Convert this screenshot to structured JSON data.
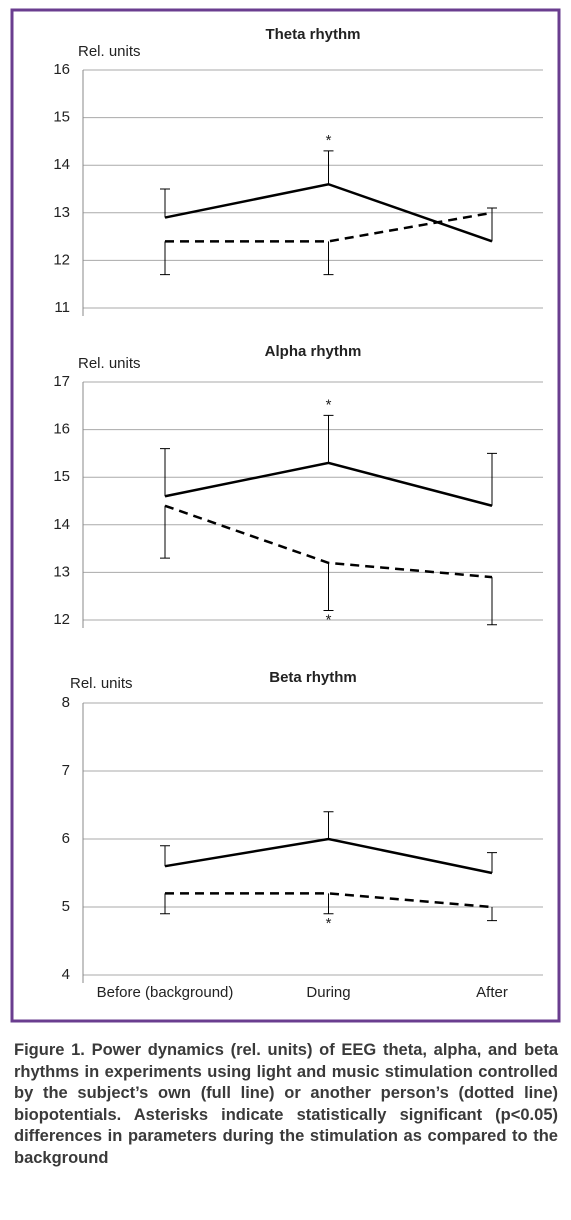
{
  "chart_data": [
    {
      "type": "line",
      "title": "Theta rhythm",
      "ylabel": "Rel. units",
      "categories": [
        null,
        null,
        null
      ],
      "ylim": [
        11,
        16
      ],
      "yticks": [
        11,
        12,
        13,
        14,
        15,
        16
      ],
      "grid": true,
      "series": [
        {
          "color": "#000000",
          "style": "solid",
          "values": [
            12.9,
            13.6,
            12.4
          ],
          "errors": [
            0.6,
            0.7,
            0.7
          ],
          "error_direction": "up",
          "point_labels": [
            null,
            "*",
            null
          ]
        },
        {
          "color": "#000000",
          "style": "dashed",
          "values": [
            12.4,
            12.4,
            13.0
          ],
          "errors": [
            0.7,
            0.7,
            null
          ],
          "error_direction": "down",
          "point_labels": [
            null,
            null,
            null
          ]
        }
      ]
    },
    {
      "type": "line",
      "title": "Alpha rhythm",
      "ylabel": "Rel. units",
      "categories": [
        null,
        null,
        null
      ],
      "ylim": [
        12,
        17
      ],
      "yticks": [
        12,
        13,
        14,
        15,
        16,
        17
      ],
      "grid": true,
      "series": [
        {
          "color": "#000000",
          "style": "solid",
          "values": [
            14.6,
            15.3,
            14.4
          ],
          "errors": [
            1.0,
            1.0,
            1.1
          ],
          "error_direction": "up",
          "point_labels": [
            null,
            "*",
            null
          ]
        },
        {
          "color": "#000000",
          "style": "dashed",
          "values": [
            14.4,
            13.2,
            12.9
          ],
          "errors": [
            1.1,
            1.0,
            1.0
          ],
          "error_direction": "down",
          "point_labels": [
            null,
            "*",
            null
          ]
        }
      ]
    },
    {
      "type": "line",
      "title": "Beta rhythm",
      "ylabel": "Rel. units",
      "categories": [
        "Before (background)",
        "During",
        "After"
      ],
      "ylim": [
        4,
        8
      ],
      "yticks": [
        4,
        5,
        6,
        7,
        8
      ],
      "grid": true,
      "series": [
        {
          "color": "#000000",
          "style": "solid",
          "values": [
            5.6,
            6.0,
            5.5
          ],
          "errors": [
            0.3,
            0.4,
            0.3
          ],
          "error_direction": "up",
          "point_labels": [
            null,
            null,
            null
          ]
        },
        {
          "color": "#000000",
          "style": "dashed",
          "values": [
            5.2,
            5.2,
            5.0
          ],
          "errors": [
            0.3,
            0.3,
            0.2
          ],
          "error_direction": "down",
          "point_labels": [
            null,
            "*",
            null
          ]
        }
      ]
    }
  ],
  "caption": "Figure 1. Power dynamics (rel. units) of EEG theta, alpha, and beta rhythms in experiments using light and music stimulation controlled by the subject’s own (full line) or another person’s (dotted line) biopotentials. Asterisks indicate statistically significant (p<0.05) differences in parameters during the stimulation as compared to the background"
}
